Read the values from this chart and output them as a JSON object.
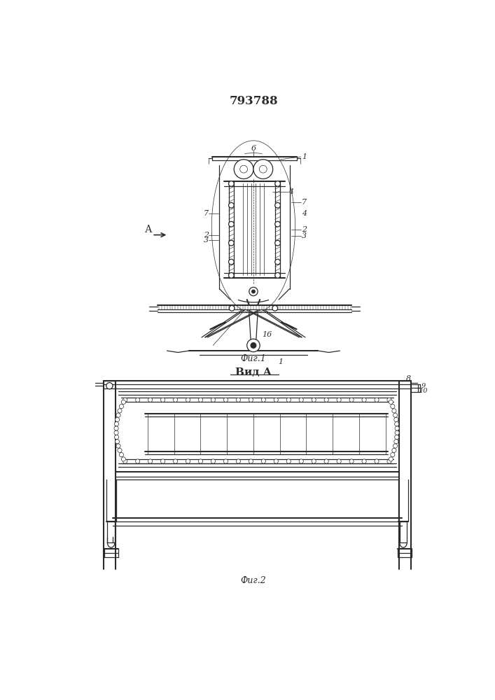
{
  "title": "793788",
  "fig1_caption": "Фиг.1",
  "fig2_caption": "Фиг.2",
  "view_label": "Вид А",
  "arrow_label": "А",
  "bg_color": "#ffffff",
  "line_color": "#2a2a2a",
  "line_width": 0.9,
  "thin_line": 0.5,
  "thick_line": 1.5
}
